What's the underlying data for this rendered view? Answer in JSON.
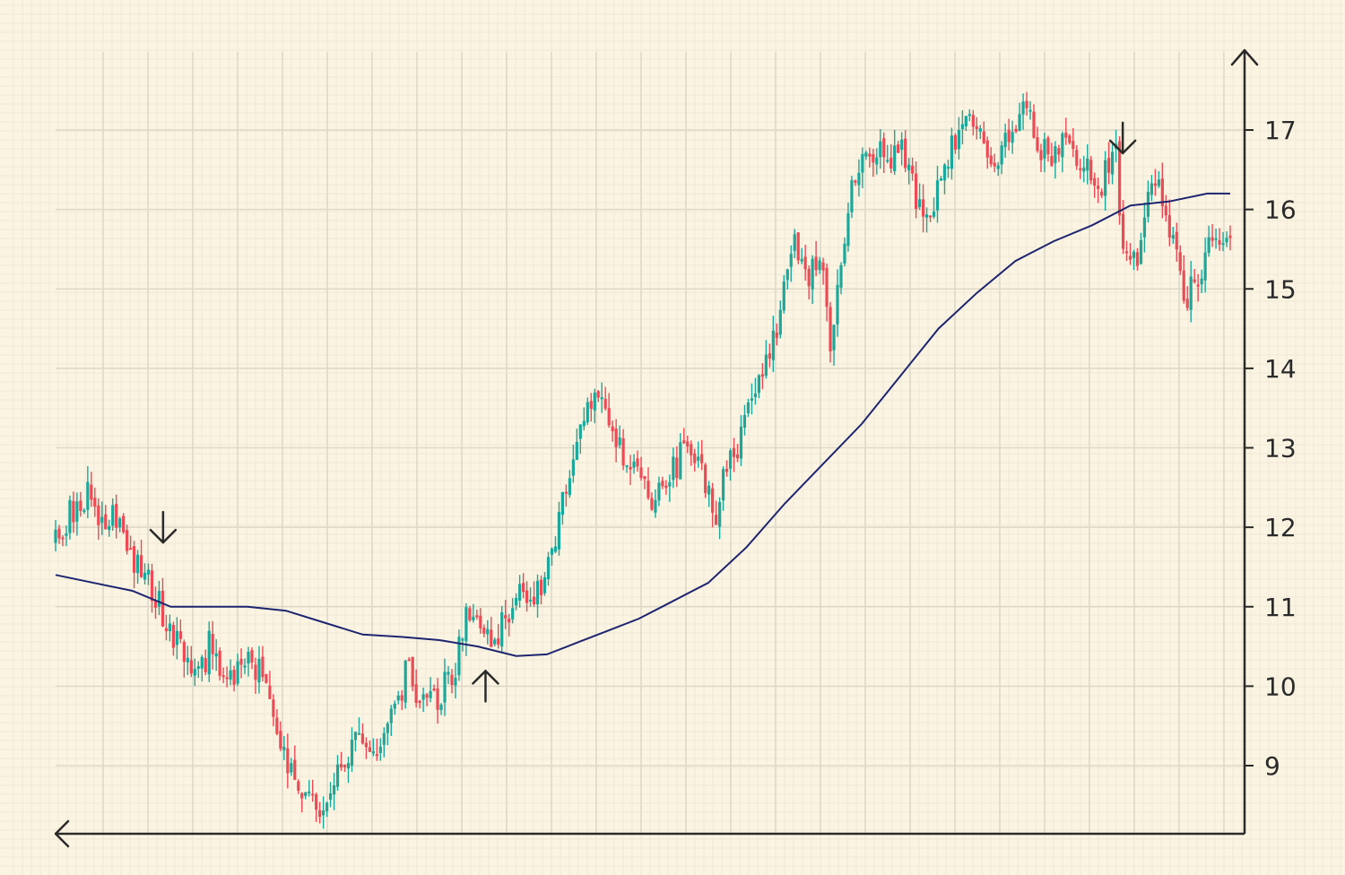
{
  "chart_data": {
    "type": "candlestick",
    "title": "",
    "xlabel": "",
    "ylabel": "",
    "ylim": [
      8.2,
      17.9
    ],
    "y_ticks": [
      "9",
      "10",
      "11",
      "12",
      "13",
      "14",
      "15",
      "16",
      "17"
    ],
    "grid": true,
    "legend": "none",
    "colors": {
      "background": "#fbf4e2",
      "grid_major": "#ddd8c8",
      "grid_minor": "#efe9d6",
      "up": "#1ba89a",
      "down": "#ec4a55",
      "moving_average": "#1d2470",
      "axis": "#2a2a2a"
    },
    "price_path": [
      {
        "x": 0,
        "y": 11.8
      },
      {
        "x": 2,
        "y": 12.2
      },
      {
        "x": 4,
        "y": 12.4
      },
      {
        "x": 6,
        "y": 12.1
      },
      {
        "x": 8,
        "y": 12.2
      },
      {
        "x": 10,
        "y": 11.6
      },
      {
        "x": 12,
        "y": 11.4
      },
      {
        "x": 14,
        "y": 10.9
      },
      {
        "x": 16,
        "y": 10.5
      },
      {
        "x": 18,
        "y": 10.0
      },
      {
        "x": 20,
        "y": 10.5
      },
      {
        "x": 22,
        "y": 9.9
      },
      {
        "x": 24,
        "y": 10.3
      },
      {
        "x": 26,
        "y": 10.3
      },
      {
        "x": 28,
        "y": 9.8
      },
      {
        "x": 30,
        "y": 9.0
      },
      {
        "x": 32,
        "y": 8.8
      },
      {
        "x": 34,
        "y": 8.5
      },
      {
        "x": 36,
        "y": 8.8
      },
      {
        "x": 38,
        "y": 9.2
      },
      {
        "x": 40,
        "y": 9.3
      },
      {
        "x": 42,
        "y": 9.0
      },
      {
        "x": 44,
        "y": 9.8
      },
      {
        "x": 46,
        "y": 10.2
      },
      {
        "x": 48,
        "y": 9.7
      },
      {
        "x": 50,
        "y": 9.9
      },
      {
        "x": 52,
        "y": 10.2
      },
      {
        "x": 54,
        "y": 11.0
      },
      {
        "x": 56,
        "y": 10.5
      },
      {
        "x": 58,
        "y": 10.7
      },
      {
        "x": 60,
        "y": 11.2
      },
      {
        "x": 62,
        "y": 11.0
      },
      {
        "x": 64,
        "y": 11.5
      },
      {
        "x": 66,
        "y": 12.3
      },
      {
        "x": 68,
        "y": 13.1
      },
      {
        "x": 70,
        "y": 13.6
      },
      {
        "x": 72,
        "y": 13.5
      },
      {
        "x": 74,
        "y": 12.8
      },
      {
        "x": 76,
        "y": 12.9
      },
      {
        "x": 78,
        "y": 12.3
      },
      {
        "x": 80,
        "y": 12.6
      },
      {
        "x": 82,
        "y": 13.0
      },
      {
        "x": 84,
        "y": 12.8
      },
      {
        "x": 86,
        "y": 12.2
      },
      {
        "x": 88,
        "y": 12.9
      },
      {
        "x": 90,
        "y": 13.3
      },
      {
        "x": 92,
        "y": 14.0
      },
      {
        "x": 94,
        "y": 14.6
      },
      {
        "x": 96,
        "y": 15.6
      },
      {
        "x": 98,
        "y": 15.2
      },
      {
        "x": 100,
        "y": 15.4
      },
      {
        "x": 101,
        "y": 14.3
      },
      {
        "x": 102,
        "y": 15.2
      },
      {
        "x": 104,
        "y": 16.4
      },
      {
        "x": 106,
        "y": 16.8
      },
      {
        "x": 108,
        "y": 16.6
      },
      {
        "x": 110,
        "y": 16.9
      },
      {
        "x": 112,
        "y": 16.1
      },
      {
        "x": 114,
        "y": 15.9
      },
      {
        "x": 116,
        "y": 16.5
      },
      {
        "x": 118,
        "y": 17.2
      },
      {
        "x": 120,
        "y": 16.9
      },
      {
        "x": 122,
        "y": 16.6
      },
      {
        "x": 124,
        "y": 16.9
      },
      {
        "x": 126,
        "y": 17.3
      },
      {
        "x": 128,
        "y": 16.8
      },
      {
        "x": 130,
        "y": 16.7
      },
      {
        "x": 132,
        "y": 16.9
      },
      {
        "x": 134,
        "y": 16.5
      },
      {
        "x": 136,
        "y": 16.3
      },
      {
        "x": 138,
        "y": 16.8
      },
      {
        "x": 139,
        "y": 15.3
      },
      {
        "x": 141,
        "y": 15.4
      },
      {
        "x": 143,
        "y": 16.5
      },
      {
        "x": 145,
        "y": 15.9
      },
      {
        "x": 147,
        "y": 14.8
      },
      {
        "x": 149,
        "y": 15.2
      },
      {
        "x": 151,
        "y": 15.6
      },
      {
        "x": 153,
        "y": 15.5
      }
    ],
    "moving_average": [
      {
        "x": 0,
        "y": 11.4
      },
      {
        "x": 5,
        "y": 11.3
      },
      {
        "x": 10,
        "y": 11.2
      },
      {
        "x": 15,
        "y": 11.0
      },
      {
        "x": 20,
        "y": 11.0
      },
      {
        "x": 25,
        "y": 11.0
      },
      {
        "x": 30,
        "y": 10.95
      },
      {
        "x": 35,
        "y": 10.8
      },
      {
        "x": 40,
        "y": 10.65
      },
      {
        "x": 45,
        "y": 10.62
      },
      {
        "x": 50,
        "y": 10.58
      },
      {
        "x": 55,
        "y": 10.5
      },
      {
        "x": 60,
        "y": 10.38
      },
      {
        "x": 64,
        "y": 10.4
      },
      {
        "x": 68,
        "y": 10.55
      },
      {
        "x": 72,
        "y": 10.7
      },
      {
        "x": 76,
        "y": 10.85
      },
      {
        "x": 80,
        "y": 11.05
      },
      {
        "x": 85,
        "y": 11.3
      },
      {
        "x": 90,
        "y": 11.75
      },
      {
        "x": 95,
        "y": 12.3
      },
      {
        "x": 100,
        "y": 12.8
      },
      {
        "x": 105,
        "y": 13.3
      },
      {
        "x": 110,
        "y": 13.9
      },
      {
        "x": 115,
        "y": 14.5
      },
      {
        "x": 120,
        "y": 14.95
      },
      {
        "x": 125,
        "y": 15.35
      },
      {
        "x": 130,
        "y": 15.6
      },
      {
        "x": 135,
        "y": 15.8
      },
      {
        "x": 140,
        "y": 16.05
      },
      {
        "x": 145,
        "y": 16.1
      },
      {
        "x": 150,
        "y": 16.2
      },
      {
        "x": 153,
        "y": 16.2
      }
    ],
    "signals": [
      {
        "direction": "down",
        "x": 14,
        "y": 12.0
      },
      {
        "direction": "up",
        "x": 56,
        "y": 10.0
      },
      {
        "direction": "down",
        "x": 139,
        "y": 16.9
      }
    ]
  }
}
